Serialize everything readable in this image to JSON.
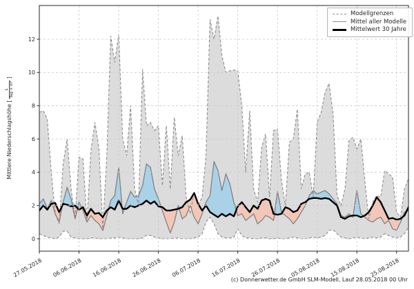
{
  "caption": "(c) Donnerwetter.de GmbH SLM-Modell, Lauf 28.05.2018 00 Uhr",
  "legend": {
    "items": [
      {
        "label": "Modellgrenzen",
        "style": "dashed-gray"
      },
      {
        "label": "Mittel aller Modelle",
        "style": "solid-gray"
      },
      {
        "label": "Mittelwert 30 Jahre",
        "style": "solid-black-thick"
      }
    ]
  },
  "y_axis": {
    "label_prefix": "Mittlere Niederschlagshöhe [",
    "unit_numerator": "L",
    "unit_denominator": "Tag × m²",
    "label_suffix": "]",
    "ticks": [
      0,
      2,
      4,
      6,
      8,
      10,
      12
    ]
  },
  "x_axis": {
    "ticks": [
      {
        "index": 0,
        "label": "27.05.2018"
      },
      {
        "index": 10,
        "label": "06.06.2018"
      },
      {
        "index": 20,
        "label": "16.06.2018"
      },
      {
        "index": 30,
        "label": "26.06.2018"
      },
      {
        "index": 40,
        "label": "06.07.2018"
      },
      {
        "index": 50,
        "label": "16.07.2018"
      },
      {
        "index": 60,
        "label": "26.07.2018"
      },
      {
        "index": 70,
        "label": "05.08.2018"
      },
      {
        "index": 80,
        "label": "15.08.2018"
      },
      {
        "index": 90,
        "label": "25.08.2018"
      }
    ]
  },
  "colors": {
    "band_fill": "#dcdcdc",
    "above_normal_fill": "#a9d2e8",
    "below_normal_fill": "#f3c7b8",
    "bounds_line": "#8c8c8c",
    "model_mean_line": "#808080",
    "mean30_line": "#000000",
    "grid": "#c9c9c9",
    "spine": "#262626",
    "background": "#ffffff"
  },
  "chart_data": {
    "type": "line",
    "title": "",
    "xlabel": "",
    "ylabel": "Mittlere Niederschlagshöhe [L/(Tag × m²)]",
    "x_start_date": "27.05.2018",
    "x_end_date": "28.08.2018",
    "x_step_days": 1,
    "n_points": 94,
    "ylim": [
      -0.75,
      14
    ],
    "grid": true,
    "legend_position": "upper right",
    "fills": [
      {
        "name": "Modellgrenzen-Band",
        "between": [
          "upper",
          "lower"
        ],
        "color_key": "band_fill"
      },
      {
        "name": "Modellmittel über Normal",
        "between": [
          "model_mean",
          "mean_30y"
        ],
        "where": "model_mean > mean_30y",
        "color_key": "above_normal_fill"
      },
      {
        "name": "Modellmittel unter Normal",
        "between": [
          "model_mean",
          "mean_30y"
        ],
        "where": "model_mean < mean_30y",
        "color_key": "below_normal_fill"
      }
    ],
    "series": [
      {
        "key": "upper",
        "name": "Modellgrenze oben",
        "style": "dashed",
        "values": [
          7.6,
          7.7,
          7.2,
          4.0,
          1.5,
          0.9,
          4.5,
          6.0,
          3.0,
          1.2,
          4.9,
          4.8,
          1.0,
          5.3,
          7.0,
          5.5,
          0.6,
          5.0,
          12.2,
          10.6,
          12.3,
          6.0,
          5.0,
          8.0,
          3.0,
          2.0,
          10.2,
          6.8,
          7.0,
          6.5,
          6.8,
          3.2,
          6.8,
          3.0,
          7.3,
          5.0,
          6.2,
          2.5,
          1.5,
          2.8,
          2.0,
          2.5,
          5.0,
          13.2,
          12.0,
          13.4,
          11.0,
          10.0,
          10.1,
          10.15,
          10.1,
          8.0,
          4.0,
          7.7,
          3.0,
          2.2,
          5.5,
          6.3,
          2.5,
          6.5,
          6.6,
          3.5,
          2.0,
          5.8,
          6.0,
          7.8,
          3.0,
          3.9,
          4.0,
          2.5,
          7.0,
          7.6,
          8.8,
          9.35,
          7.5,
          2.6,
          2.0,
          3.0,
          5.9,
          6.1,
          5.4,
          6.0,
          3.5,
          1.2,
          2.2,
          2.6,
          2.5,
          4.1,
          3.9,
          3.7,
          1.6,
          1.3,
          3.0,
          3.6
        ]
      },
      {
        "key": "lower",
        "name": "Modellgrenze unten",
        "style": "dashed",
        "values": [
          0.3,
          0.2,
          0.1,
          0.05,
          0.0,
          0.1,
          0.45,
          0.45,
          0.1,
          0.05,
          0.0,
          0.0,
          0.0,
          0.05,
          0.05,
          0.0,
          0.0,
          0.0,
          0.05,
          0.05,
          0.1,
          0.05,
          0.0,
          0.0,
          0.0,
          0.0,
          0.05,
          0.2,
          0.2,
          0.1,
          0.05,
          0.0,
          0.0,
          0.0,
          0.05,
          0.05,
          0.0,
          0.0,
          0.0,
          0.05,
          0.1,
          0.3,
          1.0,
          1.3,
          0.9,
          0.3,
          0.1,
          0.05,
          0.05,
          0.1,
          0.6,
          0.2,
          0.05,
          0.05,
          0.0,
          0.0,
          0.05,
          0.05,
          0.0,
          0.0,
          0.05,
          0.0,
          0.0,
          0.05,
          0.1,
          0.05,
          0.0,
          0.0,
          0.05,
          0.1,
          0.05,
          0.1,
          0.2,
          0.5,
          0.55,
          0.3,
          0.1,
          0.05,
          0.0,
          0.05,
          0.1,
          0.05,
          0.0,
          0.05,
          0.1,
          0.05,
          0.1,
          0.3,
          0.2,
          0.1,
          0.05,
          0.1,
          0.3,
          0.7
        ]
      },
      {
        "key": "model_mean",
        "name": "Mittel aller Modelle",
        "style": "solid",
        "values": [
          2.1,
          2.4,
          1.8,
          2.3,
          1.5,
          1.0,
          2.2,
          3.1,
          2.4,
          1.2,
          2.2,
          1.7,
          1.0,
          1.4,
          1.1,
          0.9,
          0.5,
          1.4,
          2.3,
          2.6,
          4.3,
          1.5,
          2.2,
          2.85,
          2.5,
          2.6,
          3.2,
          4.5,
          4.3,
          3.0,
          2.4,
          1.7,
          1.0,
          0.35,
          1.0,
          2.0,
          1.2,
          1.4,
          2.0,
          1.3,
          0.9,
          1.5,
          2.2,
          2.6,
          4.65,
          4.1,
          2.9,
          3.9,
          3.3,
          2.2,
          1.4,
          1.5,
          1.1,
          1.3,
          1.5,
          0.9,
          1.1,
          1.4,
          1.3,
          1.1,
          2.85,
          1.6,
          1.4,
          1.2,
          0.9,
          1.2,
          1.6,
          2.0,
          2.6,
          2.9,
          2.7,
          2.8,
          2.9,
          2.7,
          2.4,
          2.1,
          1.4,
          1.3,
          1.5,
          1.3,
          2.9,
          1.5,
          1.3,
          1.1,
          1.0,
          1.2,
          1.3,
          0.9,
          1.1,
          0.6,
          0.5,
          1.0,
          1.6,
          1.7
        ]
      },
      {
        "key": "mean_30y",
        "name": "Mittelwert 30 Jahre",
        "style": "solid-thick",
        "values": [
          1.7,
          2.0,
          1.75,
          2.1,
          2.15,
          1.6,
          2.1,
          2.05,
          1.95,
          2.0,
          1.75,
          1.9,
          1.4,
          1.8,
          1.5,
          1.55,
          1.3,
          1.7,
          1.9,
          1.75,
          2.3,
          1.8,
          1.8,
          2.0,
          1.9,
          2.0,
          2.1,
          2.3,
          2.1,
          2.25,
          1.95,
          1.9,
          1.7,
          1.7,
          1.75,
          1.8,
          1.9,
          2.2,
          2.35,
          2.75,
          2.1,
          1.7,
          2.0,
          1.6,
          1.45,
          1.3,
          1.5,
          1.35,
          1.5,
          1.35,
          1.95,
          2.2,
          1.9,
          1.6,
          2.0,
          1.8,
          2.3,
          2.4,
          2.3,
          1.5,
          1.45,
          1.5,
          1.9,
          1.8,
          1.6,
          1.7,
          2.1,
          2.2,
          2.4,
          2.45,
          2.45,
          2.4,
          2.45,
          2.4,
          2.2,
          2.0,
          1.3,
          1.2,
          1.35,
          1.4,
          1.4,
          1.3,
          1.4,
          1.6,
          2.0,
          2.5,
          2.2,
          1.7,
          1.2,
          1.25,
          1.15,
          1.2,
          1.4,
          1.9
        ]
      }
    ]
  }
}
